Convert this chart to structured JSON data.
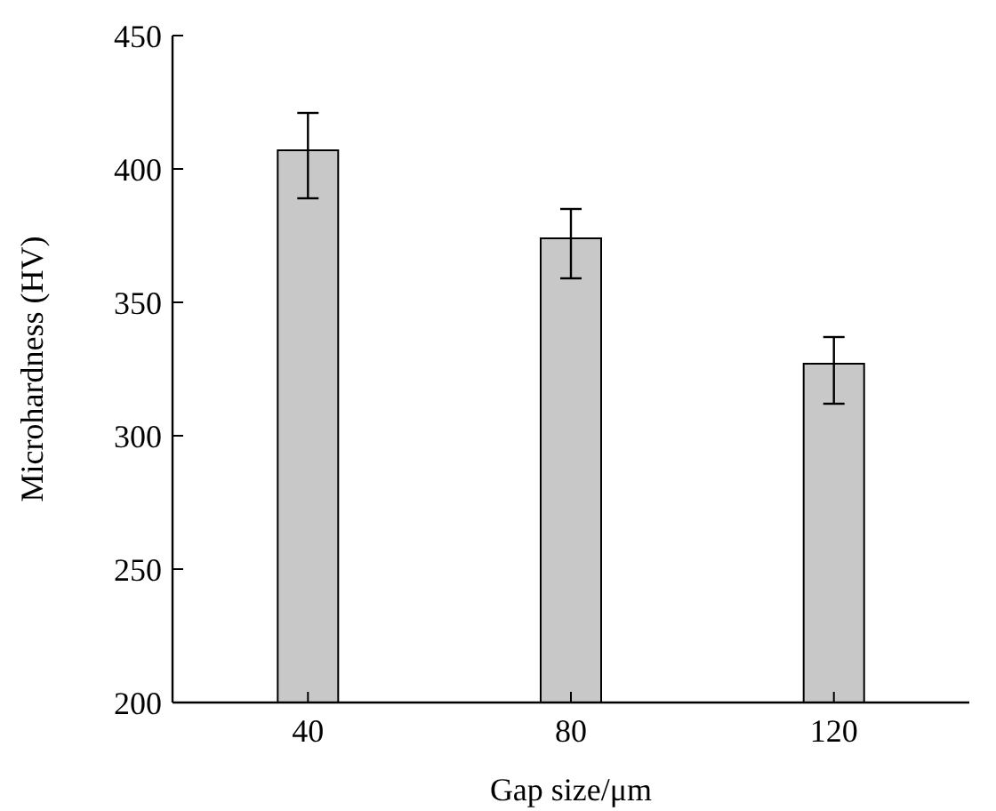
{
  "chart_data": {
    "type": "bar",
    "xlabel": "Gap size/μm",
    "ylabel": "Microhardness (HV)",
    "categories": [
      "40",
      "80",
      "120"
    ],
    "values": [
      407,
      374,
      327
    ],
    "errors": [
      [
        389,
        421
      ],
      [
        359,
        385
      ],
      [
        312,
        337
      ]
    ],
    "color": "#c8c8c8",
    "ylim": [
      200,
      450
    ],
    "yticks": [
      200,
      250,
      300,
      350,
      400,
      450
    ],
    "grid": false
  }
}
